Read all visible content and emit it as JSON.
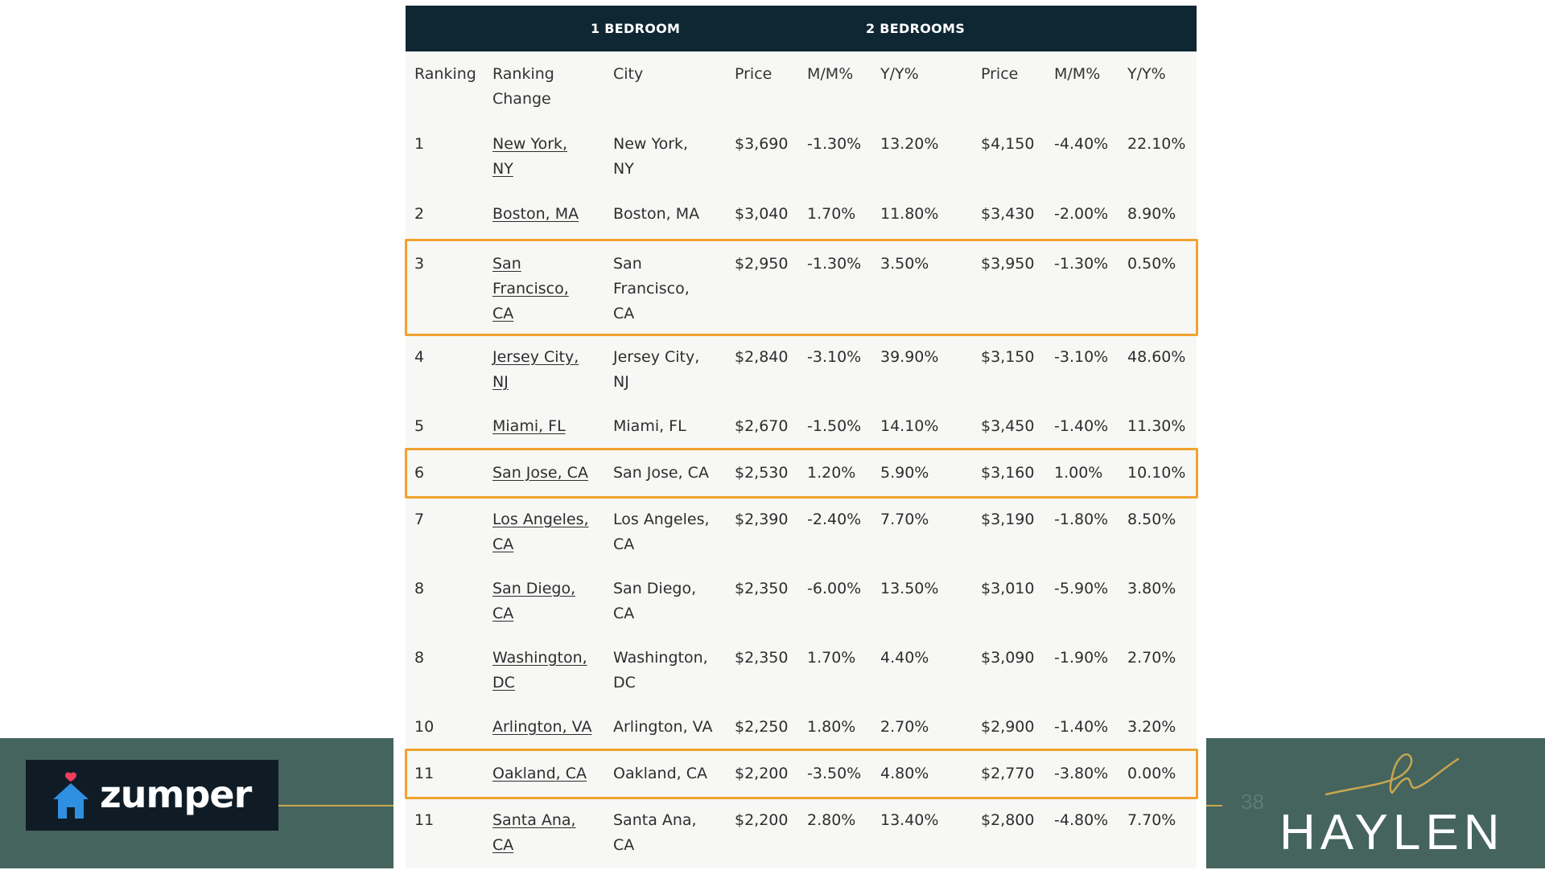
{
  "table": {
    "group_headers": [
      "1 BEDROOM",
      "2 BEDROOMS"
    ],
    "columns": [
      "Ranking",
      "Ranking\nChange",
      "City",
      "Price",
      "M/M%",
      "Y/Y%",
      "Price",
      "M/M%",
      "Y/Y%"
    ],
    "rows": [
      {
        "rank": "1",
        "change": "New York,\nNY",
        "city": "New York,\nNY",
        "p1": "$3,690",
        "mm1": "-1.30%",
        "yy1": "13.20%",
        "p2": "$4,150",
        "mm2": "-4.40%",
        "yy2": "22.10%"
      },
      {
        "rank": "2",
        "change": "Boston, MA",
        "city": "Boston, MA",
        "p1": "$3,040",
        "mm1": "1.70%",
        "yy1": "11.80%",
        "p2": "$3,430",
        "mm2": "-2.00%",
        "yy2": "8.90%"
      },
      {
        "rank": "3",
        "change": "San\nFrancisco,\nCA",
        "city": "San\nFrancisco,\nCA",
        "p1": "$2,950",
        "mm1": "-1.30%",
        "yy1": "3.50%",
        "p2": "$3,950",
        "mm2": "-1.30%",
        "yy2": "0.50%"
      },
      {
        "rank": "4",
        "change": "Jersey City,\nNJ",
        "city": "Jersey City,\nNJ",
        "p1": "$2,840",
        "mm1": "-3.10%",
        "yy1": "39.90%",
        "p2": "$3,150",
        "mm2": "-3.10%",
        "yy2": "48.60%"
      },
      {
        "rank": "5",
        "change": "Miami, FL",
        "city": "Miami, FL",
        "p1": "$2,670",
        "mm1": "-1.50%",
        "yy1": "14.10%",
        "p2": "$3,450",
        "mm2": "-1.40%",
        "yy2": "11.30%"
      },
      {
        "rank": "6",
        "change": "San Jose, CA",
        "city": "San Jose, CA",
        "p1": "$2,530",
        "mm1": "1.20%",
        "yy1": "5.90%",
        "p2": "$3,160",
        "mm2": "1.00%",
        "yy2": "10.10%"
      },
      {
        "rank": "7",
        "change": "Los Angeles,\nCA",
        "city": "Los Angeles,\nCA",
        "p1": "$2,390",
        "mm1": "-2.40%",
        "yy1": "7.70%",
        "p2": "$3,190",
        "mm2": "-1.80%",
        "yy2": "8.50%"
      },
      {
        "rank": "8",
        "change": "San Diego,\nCA",
        "city": "San Diego,\nCA",
        "p1": "$2,350",
        "mm1": "-6.00%",
        "yy1": "13.50%",
        "p2": "$3,010",
        "mm2": "-5.90%",
        "yy2": "3.80%"
      },
      {
        "rank": "8",
        "change": "Washington,\nDC",
        "city": "Washington,\nDC",
        "p1": "$2,350",
        "mm1": "1.70%",
        "yy1": "4.40%",
        "p2": "$3,090",
        "mm2": "-1.90%",
        "yy2": "2.70%"
      },
      {
        "rank": "10",
        "change": "Arlington, VA",
        "city": "Arlington, VA",
        "p1": "$2,250",
        "mm1": "1.80%",
        "yy1": "2.70%",
        "p2": "$2,900",
        "mm2": "-1.40%",
        "yy2": "3.20%"
      },
      {
        "rank": "11",
        "change": "Oakland, CA",
        "city": "Oakland, CA",
        "p1": "$2,200",
        "mm1": "-3.50%",
        "yy1": "4.80%",
        "p2": "$2,770",
        "mm2": "-3.80%",
        "yy2": "0.00%"
      },
      {
        "rank": "11",
        "change": "Santa Ana,\nCA",
        "city": "Santa Ana,\nCA",
        "p1": "$2,200",
        "mm1": "2.80%",
        "yy1": "13.40%",
        "p2": "$2,800",
        "mm2": "-4.80%",
        "yy2": "7.70%"
      }
    ],
    "highlighted_row_indices": [
      2,
      5,
      10
    ],
    "highlight_color": "#f0a32e",
    "header_bg_color": "#0f2733"
  },
  "footer": {
    "zumper_logo_text": "zumper",
    "haylen_logo_text": "HAYLEN",
    "page_number": "38",
    "band_color": "#44645d",
    "accent_gold": "#c9a650"
  }
}
